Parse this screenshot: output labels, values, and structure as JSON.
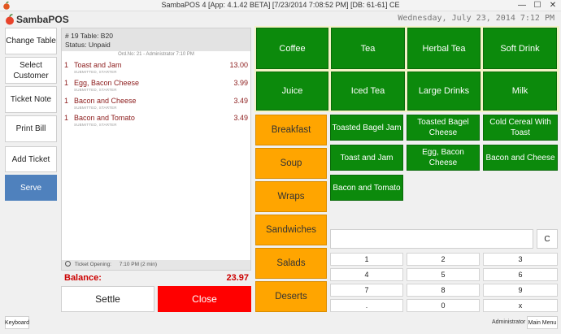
{
  "window": {
    "title": "SambaPOS 4 [App: 4.1.42 BETA] [7/23/2014 7:08:52 PM] [DB: 61-61] CE",
    "minimize_glyph": "—",
    "maximize_glyph": "☐",
    "close_glyph": "✕"
  },
  "header": {
    "logo_text": "SambaPOS",
    "datetime": "Wednesday, July 23, 2014 7:12 PM"
  },
  "left_buttons": [
    {
      "label": "Change Table"
    },
    {
      "label": "Select Customer"
    },
    {
      "label": "Ticket Note"
    },
    {
      "label": "Print Bill"
    },
    {
      "label": "Add Ticket"
    },
    {
      "label": "Serve"
    }
  ],
  "ticket": {
    "title": "# 19 Table: B20",
    "status": "Status: Unpaid",
    "order_meta": "Ord.No: 21 - Administrator  7:10 PM",
    "orders": [
      {
        "qty": "1",
        "name": "Toast and Jam",
        "price": "13.00",
        "tag": "SUBMITTED, STARTER"
      },
      {
        "qty": "1",
        "name": "Egg, Bacon Cheese",
        "price": "3.99",
        "tag": "SUBMITTED, STARTER"
      },
      {
        "qty": "1",
        "name": "Bacon and Cheese",
        "price": "3.49",
        "tag": "SUBMITTED, STARTER"
      },
      {
        "qty": "1",
        "name": "Bacon and Tomato",
        "price": "3.49",
        "tag": "SUBMITTED, STARTER"
      }
    ],
    "footer_label": "Ticket Opening:",
    "footer_value": "7:10 PM (2 min)",
    "balance_label": "Balance:",
    "balance_value": "23.97",
    "settle_label": "Settle",
    "close_label": "Close"
  },
  "top_categories": [
    {
      "label": "Coffee"
    },
    {
      "label": "Tea"
    },
    {
      "label": "Herbal Tea"
    },
    {
      "label": "Soft Drink"
    },
    {
      "label": "Juice"
    },
    {
      "label": "Iced Tea"
    },
    {
      "label": "Large Drinks"
    },
    {
      "label": "Milk"
    }
  ],
  "menu_categories": [
    {
      "label": "Breakfast"
    },
    {
      "label": "Soup"
    },
    {
      "label": "Wraps"
    },
    {
      "label": "Sandwiches"
    },
    {
      "label": "Salads"
    },
    {
      "label": "Deserts"
    }
  ],
  "products": [
    {
      "label": "Toasted Bagel Jam"
    },
    {
      "label": "Toasted Bagel Cheese"
    },
    {
      "label": "Cold Cereal With Toast"
    },
    {
      "label": "Toast and Jam"
    },
    {
      "label": "Egg, Bacon Cheese"
    },
    {
      "label": "Bacon and Cheese"
    },
    {
      "label": "Bacon and Tomato"
    }
  ],
  "keypad": {
    "input_value": "",
    "clear_label": "C",
    "keys": [
      "1",
      "2",
      "3",
      "4",
      "5",
      "6",
      "7",
      "8",
      "9",
      ".",
      "0",
      "x"
    ]
  },
  "footer": {
    "keyboard_label": "Keyboard",
    "user_name": "Administrator",
    "main_menu_label": "Main Menu"
  },
  "colors": {
    "product_green": "#0c8a0c",
    "category_orange": "#ffa500",
    "close_red": "#ff0000",
    "serve_blue": "#4f81bd",
    "balance_red": "#cc0000"
  }
}
